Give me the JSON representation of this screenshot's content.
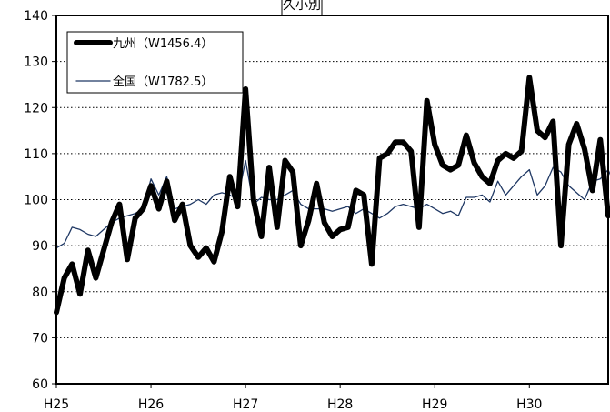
{
  "chart_data": {
    "type": "line",
    "title": "久小別",
    "xlabel": "",
    "ylabel": "",
    "ylim": [
      60,
      140
    ],
    "yticks": [
      60,
      70,
      80,
      90,
      100,
      110,
      120,
      130,
      140
    ],
    "xticks": [
      "H25",
      "H26",
      "H27",
      "H28",
      "H29",
      "H30"
    ],
    "grid": "horizontal dotted",
    "legend_position": "top-left",
    "series": [
      {
        "name": "九州（W1456.4）",
        "color": "#000000",
        "values": [
          75.5,
          83,
          86,
          79.5,
          89,
          83,
          89,
          95,
          99,
          87,
          96,
          98,
          103,
          98,
          104,
          95.5,
          99,
          90,
          87.5,
          89.5,
          86.5,
          93,
          105,
          98.5,
          124,
          100,
          92,
          107,
          94,
          108.5,
          106,
          90,
          95.5,
          103.5,
          95,
          92,
          93.5,
          94,
          102,
          101,
          86,
          109,
          110,
          112.5,
          112.5,
          110.5,
          94,
          121.5,
          112,
          107.5,
          106.5,
          107.5,
          114,
          108,
          105,
          103.5,
          108.5,
          110,
          109,
          110.5,
          126.5,
          115,
          113.5,
          117,
          90,
          112,
          116.5,
          111,
          102,
          113,
          96.5
        ]
      },
      {
        "name": "全国（W1782.5）",
        "color": "#1f3864",
        "values": [
          89.5,
          90.5,
          94,
          93.5,
          92.5,
          92,
          93.5,
          95,
          96,
          96.5,
          97,
          98,
          104.5,
          101,
          105,
          98,
          98.5,
          99,
          100,
          99,
          101,
          101.5,
          101,
          100,
          108.5,
          99,
          100.5,
          100,
          100,
          101,
          102,
          99,
          98,
          98,
          98,
          97.5,
          98,
          98.5,
          97,
          98,
          97,
          96,
          97,
          98.5,
          99,
          98.5,
          98,
          99,
          98,
          97,
          97.5,
          96.5,
          100.5,
          100.5,
          101,
          99.5,
          104,
          101,
          103,
          105,
          106.5,
          101,
          103,
          107,
          106,
          103,
          101.5,
          100,
          104,
          104.5,
          106.5,
          102.5
        ]
      }
    ]
  }
}
